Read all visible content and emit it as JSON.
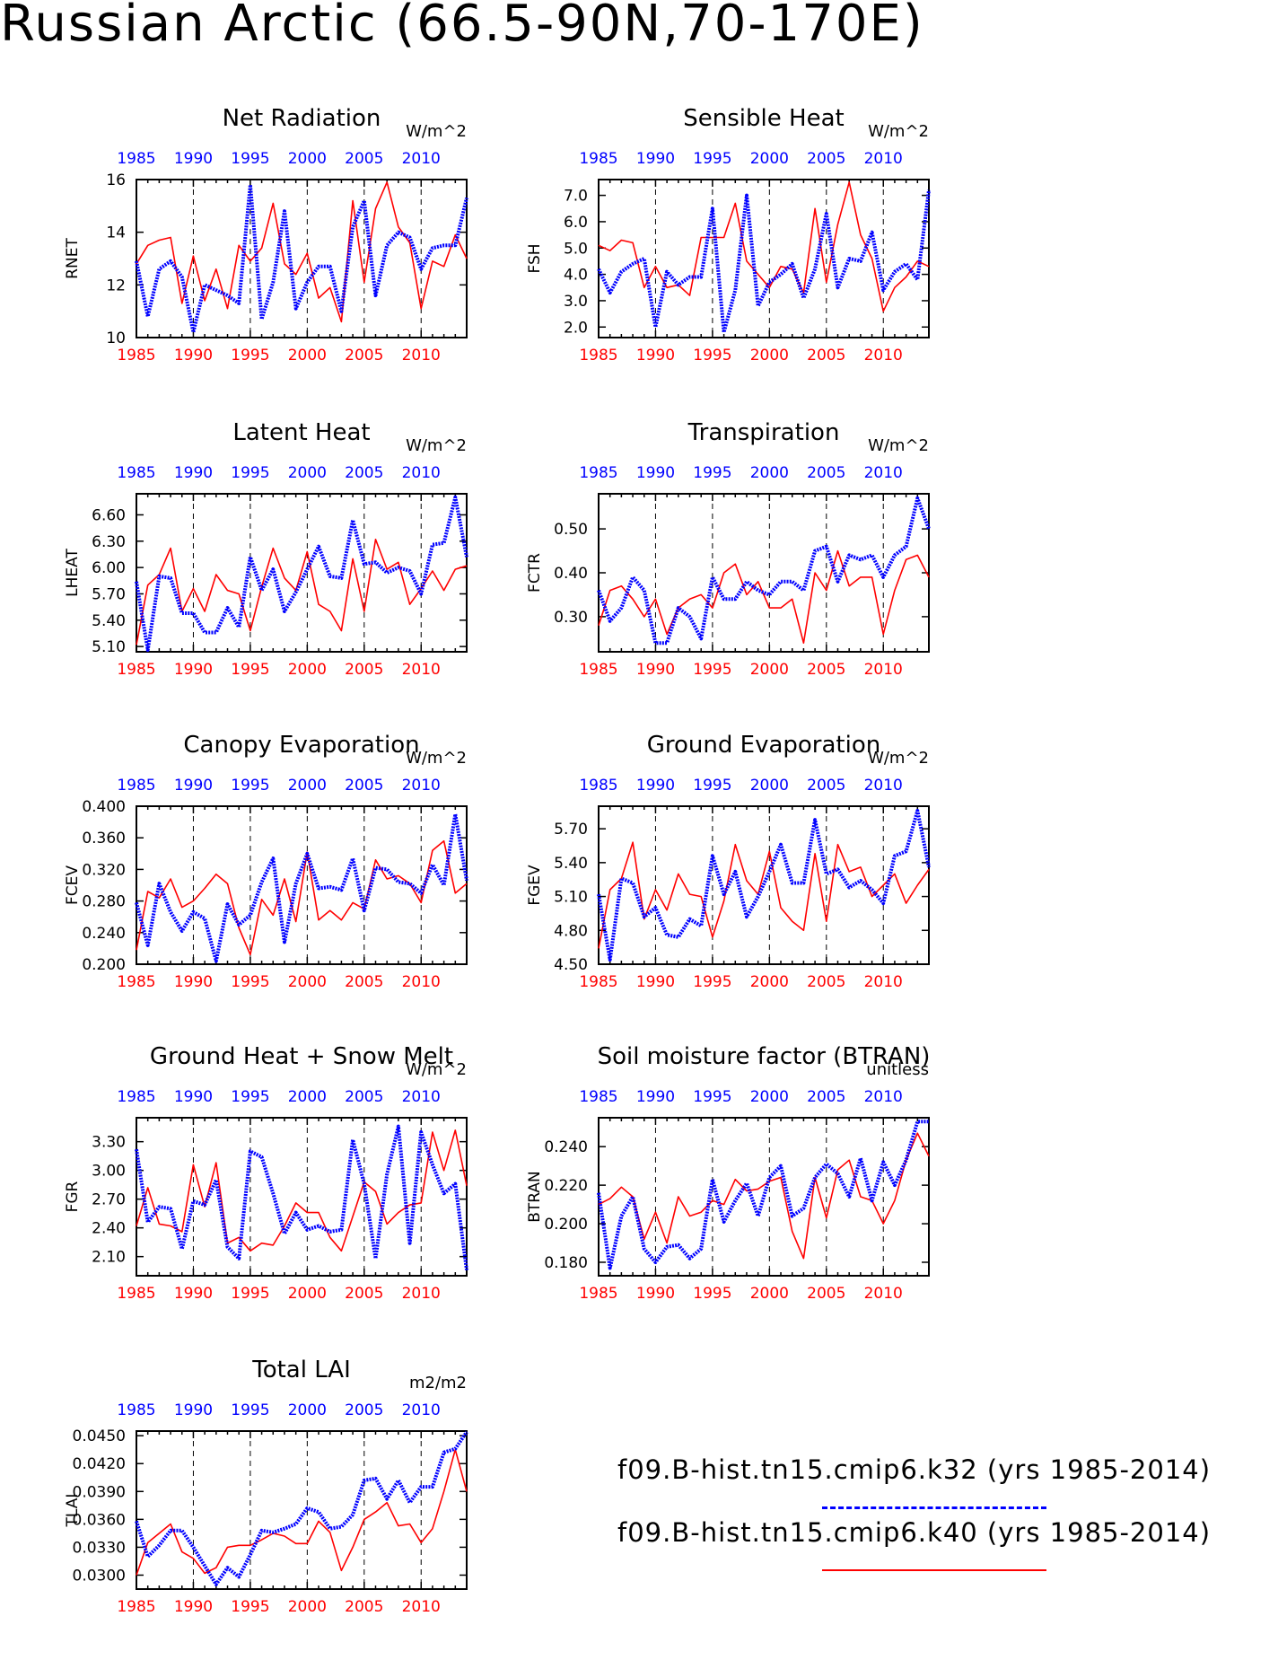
{
  "page": {
    "title": "Russian Arctic (66.5-90N,70-170E)"
  },
  "colors": {
    "k32": "#0000ff",
    "k40": "#ff0000",
    "axis": "#000000"
  },
  "legend": {
    "items": [
      {
        "label": "f09.B-hist.tn15.cmip6.k32 (yrs 1985-2014)",
        "color": "#0000ff",
        "style": "dashed"
      },
      {
        "label": "f09.B-hist.tn15.cmip6.k40 (yrs 1985-2014)",
        "color": "#ff0000",
        "style": "solid"
      }
    ]
  },
  "chart_data": [
    {
      "type": "line",
      "title": "Net Radiation",
      "ylabel": "RNET",
      "units": "W/m^2",
      "xlim": [
        1985,
        2014
      ],
      "ylim": [
        10,
        16
      ],
      "yticks": [
        "10",
        "12",
        "14",
        "16"
      ],
      "xticks": [
        "1985",
        "1990",
        "1995",
        "2000",
        "2005",
        "2010"
      ],
      "series": [
        {
          "color": "#ff0000",
          "values": [
            12.8,
            13.5,
            13.7,
            13.8,
            11.3,
            13.1,
            11.4,
            12.6,
            11.1,
            13.5,
            12.9,
            13.4,
            15.1,
            12.8,
            12.4,
            13.2,
            11.5,
            11.9,
            10.6,
            15.2,
            12.1,
            14.9,
            15.9,
            14.2,
            13.6,
            11.1,
            12.9,
            12.7,
            13.9,
            13.0
          ]
        },
        {
          "color": "#0000ff",
          "values": [
            12.9,
            10.8,
            12.6,
            12.9,
            12.3,
            10.2,
            12.0,
            11.8,
            11.6,
            11.3,
            15.8,
            10.7,
            12.1,
            14.8,
            11.1,
            12.1,
            12.7,
            12.7,
            11.0,
            14.2,
            15.2,
            11.6,
            13.5,
            14.0,
            13.8,
            12.6,
            13.4,
            13.5,
            13.5,
            15.3
          ]
        }
      ]
    },
    {
      "type": "line",
      "title": "Sensible Heat",
      "ylabel": "FSH",
      "units": "W/m^2",
      "xlim": [
        1985,
        2014
      ],
      "ylim": [
        1.6,
        7.6
      ],
      "yticks": [
        "2.0",
        "3.0",
        "4.0",
        "5.0",
        "6.0",
        "7.0"
      ],
      "xticks": [
        "1985",
        "1990",
        "1995",
        "2000",
        "2005",
        "2010"
      ],
      "series": [
        {
          "color": "#ff0000",
          "values": [
            5.1,
            4.9,
            5.3,
            5.2,
            3.5,
            4.3,
            3.5,
            3.6,
            3.2,
            5.4,
            5.4,
            5.4,
            6.7,
            4.5,
            4.0,
            3.5,
            4.3,
            4.2,
            3.3,
            6.5,
            3.7,
            5.9,
            7.5,
            5.5,
            4.6,
            2.6,
            3.5,
            3.9,
            4.5,
            4.3
          ]
        },
        {
          "color": "#0000ff",
          "values": [
            4.2,
            3.3,
            4.1,
            4.4,
            4.6,
            2.0,
            4.1,
            3.6,
            3.9,
            3.9,
            6.5,
            1.8,
            3.4,
            7.0,
            2.8,
            3.7,
            4.0,
            4.4,
            3.1,
            4.2,
            6.3,
            3.5,
            4.6,
            4.5,
            5.6,
            3.4,
            4.1,
            4.4,
            3.8,
            7.2
          ]
        }
      ]
    },
    {
      "type": "line",
      "title": "Latent Heat",
      "ylabel": "LHEAT",
      "units": "W/m^2",
      "xlim": [
        1985,
        2014
      ],
      "ylim": [
        5.04,
        6.84
      ],
      "yticks": [
        "5.10",
        "5.40",
        "5.70",
        "6.00",
        "6.30",
        "6.60"
      ],
      "xticks": [
        "1985",
        "1990",
        "1995",
        "2000",
        "2005",
        "2010"
      ],
      "series": [
        {
          "color": "#ff0000",
          "values": [
            5.12,
            5.8,
            5.92,
            6.22,
            5.5,
            5.76,
            5.5,
            5.92,
            5.74,
            5.7,
            5.28,
            5.78,
            6.22,
            5.88,
            5.74,
            6.18,
            5.58,
            5.5,
            5.28,
            6.1,
            5.5,
            6.32,
            5.98,
            6.06,
            5.58,
            5.76,
            5.96,
            5.74,
            5.98,
            6.02
          ]
        },
        {
          "color": "#0000ff",
          "values": [
            5.84,
            5.06,
            5.9,
            5.88,
            5.48,
            5.48,
            5.26,
            5.26,
            5.54,
            5.32,
            6.12,
            5.74,
            5.98,
            5.5,
            5.72,
            5.98,
            6.24,
            5.9,
            5.88,
            6.54,
            6.04,
            6.06,
            5.94,
            6.0,
            5.96,
            5.7,
            6.26,
            6.28,
            6.8,
            6.12
          ]
        }
      ]
    },
    {
      "type": "line",
      "title": "Transpiration",
      "ylabel": "FCTR",
      "units": "W/m^2",
      "xlim": [
        1985,
        2014
      ],
      "ylim": [
        0.22,
        0.58
      ],
      "yticks": [
        "0.30",
        "0.40",
        "0.50"
      ],
      "xticks": [
        "1985",
        "1990",
        "1995",
        "2000",
        "2005",
        "2010"
      ],
      "series": [
        {
          "color": "#ff0000",
          "values": [
            0.28,
            0.36,
            0.37,
            0.34,
            0.3,
            0.34,
            0.26,
            0.32,
            0.34,
            0.35,
            0.32,
            0.4,
            0.42,
            0.35,
            0.38,
            0.32,
            0.32,
            0.34,
            0.24,
            0.4,
            0.36,
            0.45,
            0.37,
            0.39,
            0.39,
            0.26,
            0.36,
            0.43,
            0.44,
            0.39
          ]
        },
        {
          "color": "#0000ff",
          "values": [
            0.36,
            0.29,
            0.32,
            0.39,
            0.36,
            0.24,
            0.24,
            0.32,
            0.3,
            0.25,
            0.39,
            0.34,
            0.34,
            0.38,
            0.36,
            0.35,
            0.38,
            0.38,
            0.36,
            0.45,
            0.46,
            0.38,
            0.44,
            0.43,
            0.44,
            0.39,
            0.44,
            0.46,
            0.57,
            0.5
          ]
        }
      ]
    },
    {
      "type": "line",
      "title": "Canopy Evaporation",
      "ylabel": "FCEV",
      "units": "W/m^2",
      "xlim": [
        1985,
        2014
      ],
      "ylim": [
        0.2,
        0.4
      ],
      "yticks": [
        "0.200",
        "0.240",
        "0.280",
        "0.320",
        "0.360",
        "0.400"
      ],
      "xticks": [
        "1985",
        "1990",
        "1995",
        "2000",
        "2005",
        "2010"
      ],
      "series": [
        {
          "color": "#ff0000",
          "values": [
            0.218,
            0.292,
            0.284,
            0.308,
            0.272,
            0.28,
            0.296,
            0.314,
            0.302,
            0.246,
            0.212,
            0.282,
            0.262,
            0.308,
            0.254,
            0.342,
            0.256,
            0.268,
            0.256,
            0.278,
            0.27,
            0.332,
            0.308,
            0.312,
            0.302,
            0.278,
            0.344,
            0.356,
            0.29,
            0.302
          ]
        },
        {
          "color": "#0000ff",
          "values": [
            0.278,
            0.224,
            0.302,
            0.266,
            0.242,
            0.266,
            0.258,
            0.204,
            0.276,
            0.25,
            0.262,
            0.304,
            0.334,
            0.228,
            0.302,
            0.34,
            0.296,
            0.298,
            0.294,
            0.334,
            0.268,
            0.322,
            0.32,
            0.304,
            0.302,
            0.29,
            0.326,
            0.3,
            0.39,
            0.306
          ]
        }
      ]
    },
    {
      "type": "line",
      "title": "Ground Evaporation",
      "ylabel": "FGEV",
      "units": "W/m^2",
      "xlim": [
        1985,
        2014
      ],
      "ylim": [
        4.5,
        5.9
      ],
      "yticks": [
        "4.50",
        "4.80",
        "5.10",
        "5.40",
        "5.70"
      ],
      "xticks": [
        "1985",
        "1990",
        "1995",
        "2000",
        "2005",
        "2010"
      ],
      "series": [
        {
          "color": "#ff0000",
          "values": [
            4.64,
            5.16,
            5.26,
            5.58,
            4.9,
            5.16,
            4.98,
            5.3,
            5.12,
            5.1,
            4.74,
            5.06,
            5.56,
            5.24,
            5.12,
            5.5,
            5.0,
            4.88,
            4.8,
            5.48,
            4.88,
            5.56,
            5.32,
            5.36,
            5.1,
            5.2,
            5.3,
            5.04,
            5.2,
            5.34
          ]
        },
        {
          "color": "#0000ff",
          "values": [
            5.12,
            4.54,
            5.26,
            5.22,
            4.92,
            5.0,
            4.76,
            4.74,
            4.9,
            4.84,
            5.46,
            5.12,
            5.32,
            4.92,
            5.1,
            5.32,
            5.56,
            5.22,
            5.22,
            5.78,
            5.3,
            5.34,
            5.18,
            5.24,
            5.16,
            5.04,
            5.46,
            5.5,
            5.86,
            5.36
          ]
        }
      ]
    },
    {
      "type": "line",
      "title": "Ground Heat + Snow Melt",
      "ylabel": "FGR",
      "units": "W/m^2",
      "xlim": [
        1985,
        2014
      ],
      "ylim": [
        1.9,
        3.55
      ],
      "yticks": [
        "2.10",
        "2.40",
        "2.70",
        "3.00",
        "3.30"
      ],
      "xticks": [
        "1985",
        "1990",
        "1995",
        "2000",
        "2005",
        "2010"
      ],
      "series": [
        {
          "color": "#ff0000",
          "values": [
            2.42,
            2.82,
            2.44,
            2.42,
            2.36,
            3.06,
            2.62,
            3.08,
            2.24,
            2.3,
            2.16,
            2.24,
            2.22,
            2.42,
            2.66,
            2.56,
            2.56,
            2.3,
            2.16,
            2.52,
            2.88,
            2.78,
            2.44,
            2.56,
            2.64,
            2.66,
            3.4,
            3.0,
            3.42,
            2.84
          ]
        },
        {
          "color": "#0000ff",
          "values": [
            3.22,
            2.46,
            2.62,
            2.6,
            2.18,
            2.68,
            2.64,
            2.9,
            2.2,
            2.08,
            3.2,
            3.14,
            2.76,
            2.34,
            2.56,
            2.38,
            2.42,
            2.36,
            2.38,
            3.32,
            2.86,
            2.08,
            2.96,
            3.46,
            2.24,
            3.4,
            3.06,
            2.76,
            2.86,
            1.96
          ]
        }
      ]
    },
    {
      "type": "line",
      "title": "Soil moisture factor (BTRAN)",
      "ylabel": "BTRAN",
      "units": "unitless",
      "xlim": [
        1985,
        2014
      ],
      "ylim": [
        0.173,
        0.255
      ],
      "yticks": [
        "0.180",
        "0.200",
        "0.220",
        "0.240"
      ],
      "xticks": [
        "1985",
        "1990",
        "1995",
        "2000",
        "2005",
        "2010"
      ],
      "series": [
        {
          "color": "#ff0000",
          "values": [
            0.21,
            0.213,
            0.219,
            0.214,
            0.192,
            0.206,
            0.19,
            0.214,
            0.204,
            0.206,
            0.212,
            0.21,
            0.223,
            0.217,
            0.218,
            0.222,
            0.224,
            0.196,
            0.182,
            0.224,
            0.203,
            0.228,
            0.233,
            0.214,
            0.212,
            0.2,
            0.212,
            0.233,
            0.247,
            0.235
          ]
        },
        {
          "color": "#0000ff",
          "values": [
            0.216,
            0.177,
            0.204,
            0.214,
            0.187,
            0.18,
            0.188,
            0.189,
            0.182,
            0.187,
            0.223,
            0.201,
            0.212,
            0.221,
            0.204,
            0.224,
            0.23,
            0.204,
            0.208,
            0.224,
            0.231,
            0.226,
            0.214,
            0.234,
            0.212,
            0.232,
            0.22,
            0.233,
            0.253,
            0.253
          ]
        }
      ]
    },
    {
      "type": "line",
      "title": "Total LAI",
      "ylabel": "TLAI",
      "units": "m2/m2",
      "xlim": [
        1985,
        2014
      ],
      "ylim": [
        0.0285,
        0.0455
      ],
      "yticks": [
        "0.0300",
        "0.0330",
        "0.0360",
        "0.0390",
        "0.0420",
        "0.0450"
      ],
      "xticks": [
        "1985",
        "1990",
        "1995",
        "2000",
        "2005",
        "2010"
      ],
      "series": [
        {
          "color": "#ff0000",
          "values": [
            0.03,
            0.0335,
            0.0345,
            0.0355,
            0.0325,
            0.0318,
            0.0302,
            0.0308,
            0.033,
            0.0332,
            0.0332,
            0.0338,
            0.0345,
            0.0342,
            0.0334,
            0.0334,
            0.0358,
            0.0346,
            0.0305,
            0.033,
            0.036,
            0.0368,
            0.0378,
            0.0353,
            0.0355,
            0.0335,
            0.035,
            0.039,
            0.0435,
            0.039
          ]
        },
        {
          "color": "#0000ff",
          "values": [
            0.0358,
            0.032,
            0.0332,
            0.0348,
            0.0348,
            0.033,
            0.031,
            0.029,
            0.0308,
            0.0298,
            0.0322,
            0.0348,
            0.0346,
            0.035,
            0.0355,
            0.0372,
            0.0368,
            0.035,
            0.0352,
            0.0365,
            0.0402,
            0.0404,
            0.0382,
            0.0402,
            0.0378,
            0.0395,
            0.0395,
            0.0432,
            0.0436,
            0.0454
          ]
        }
      ]
    }
  ]
}
